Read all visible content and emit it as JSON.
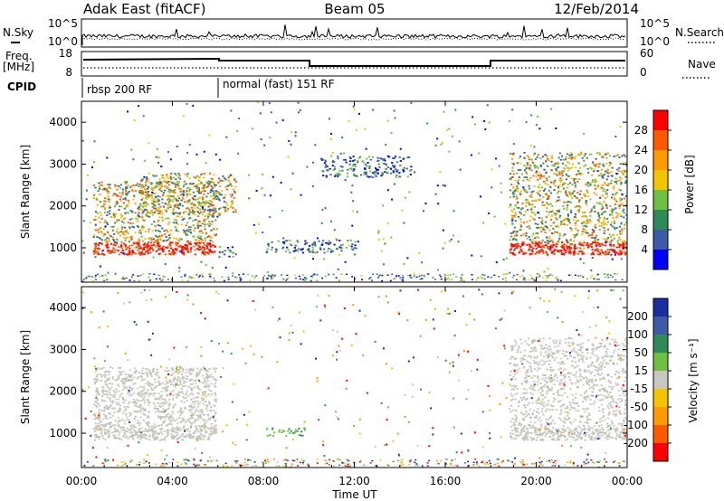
{
  "header": {
    "station": "Adak East (fitACF)",
    "beam": "Beam 05",
    "date": "12/Feb/2014"
  },
  "strips": {
    "nsky_label": "N.Sky",
    "nsky_ticks": [
      "10^5",
      "10^0"
    ],
    "nsearch_label": "N.Search",
    "nsearch_ticks": [
      "10^5",
      "10^0"
    ],
    "freq_label": "Freq.",
    "freq_unit": "[MHz]",
    "freq_ticks": [
      "18",
      "8"
    ],
    "nave_label": "Nave",
    "nave_ticks": [
      "60",
      "0"
    ],
    "cpid_label": "CPID",
    "cpid_modes": [
      {
        "name": "rbsp 200 RF",
        "start": 0
      },
      {
        "name": "normal (fast) 151 RF",
        "start": 6
      }
    ]
  },
  "chart_data": [
    {
      "type": "heatmap",
      "panel": "power",
      "xlabel": "",
      "ylabel": "Slant Range [km]",
      "x_range_hours": [
        0,
        24
      ],
      "ylim": [
        180,
        4500
      ],
      "yticks": [
        1000,
        2000,
        3000,
        4000
      ],
      "colorbar": {
        "label": "Power [dB]",
        "ticks": [
          "28",
          "24",
          "20",
          "16",
          "12",
          "8",
          "4"
        ],
        "colors": [
          "#ff0000",
          "#ff5a00",
          "#ff9a00",
          "#f5c400",
          "#6fc040",
          "#2e8b57",
          "#3c5aa6",
          "#0000ff"
        ]
      },
      "regions": [
        {
          "t0": 0.5,
          "t1": 5.9,
          "r0": 850,
          "r1": 1150,
          "level": "strong"
        },
        {
          "t0": 0.5,
          "t1": 5.9,
          "r0": 1150,
          "r1": 2600,
          "level": "medium"
        },
        {
          "t0": 2.5,
          "t1": 6.8,
          "r0": 1800,
          "r1": 2800,
          "level": "medium"
        },
        {
          "t0": 6.0,
          "t1": 6.8,
          "r0": 800,
          "r1": 1050,
          "level": "weak"
        },
        {
          "t0": 8.0,
          "t1": 12.3,
          "r0": 900,
          "r1": 1200,
          "level": "weak"
        },
        {
          "t0": 18.8,
          "t1": 24.0,
          "r0": 850,
          "r1": 1150,
          "level": "strong"
        },
        {
          "t0": 18.8,
          "t1": 24.0,
          "r0": 1150,
          "r1": 3300,
          "level": "medium"
        },
        {
          "t0": 10.5,
          "t1": 14.5,
          "r0": 2700,
          "r1": 3200,
          "level": "weak"
        }
      ]
    },
    {
      "type": "heatmap",
      "panel": "velocity",
      "xlabel": "Time UT",
      "ylabel": "Slant Range [km]",
      "x_range_hours": [
        0,
        24
      ],
      "xticks": [
        "00:00",
        "04:00",
        "08:00",
        "12:00",
        "16:00",
        "20:00",
        "00:00"
      ],
      "ylim": [
        180,
        4500
      ],
      "yticks": [
        1000,
        2000,
        3000,
        4000
      ],
      "colorbar": {
        "label": "Velocity [m s⁻¹]",
        "ticks": [
          "200",
          "100",
          "50",
          "15",
          "-15",
          "-50",
          "-100",
          "-200"
        ],
        "colors": [
          "#1a2ea0",
          "#3c5aa6",
          "#2e8b57",
          "#6fc040",
          "#c8c8c0",
          "#f5c400",
          "#ff9a00",
          "#ff5a00",
          "#ff0000"
        ]
      },
      "regions": [
        {
          "t0": 0.5,
          "t1": 5.9,
          "r0": 850,
          "r1": 1150,
          "level": "ground"
        },
        {
          "t0": 0.5,
          "t1": 5.9,
          "r0": 1150,
          "r1": 2600,
          "level": "ground"
        },
        {
          "t0": 8.0,
          "t1": 10.0,
          "r0": 950,
          "r1": 1150,
          "level": "positive"
        },
        {
          "t0": 18.8,
          "t1": 24.0,
          "r0": 850,
          "r1": 1150,
          "level": "ground"
        },
        {
          "t0": 18.8,
          "t1": 24.0,
          "r0": 1150,
          "r1": 3300,
          "level": "ground"
        }
      ]
    }
  ]
}
